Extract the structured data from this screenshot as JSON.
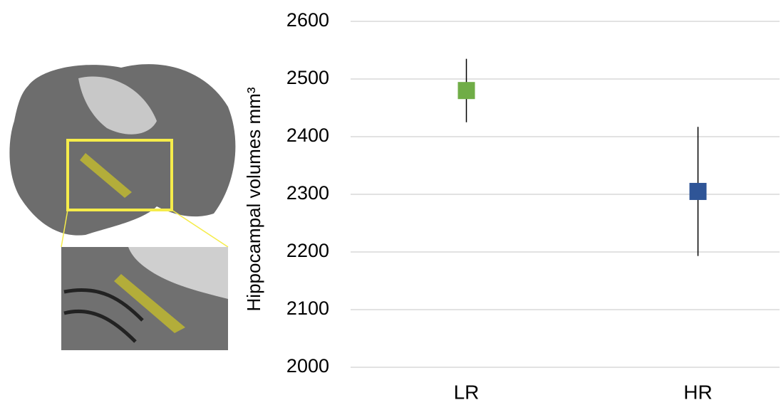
{
  "chart_data": {
    "type": "errorbar",
    "y_label": "Hippocampal volumes mm³",
    "categories": [
      "LR",
      "HR"
    ],
    "values": [
      2480,
      2305
    ],
    "errors": [
      55,
      112
    ],
    "colors": [
      "#70ad47",
      "#2f5597"
    ],
    "ylim": [
      2000,
      2600
    ],
    "yticks": [
      2000,
      2100,
      2200,
      2300,
      2400,
      2500,
      2600
    ],
    "grid": true
  }
}
